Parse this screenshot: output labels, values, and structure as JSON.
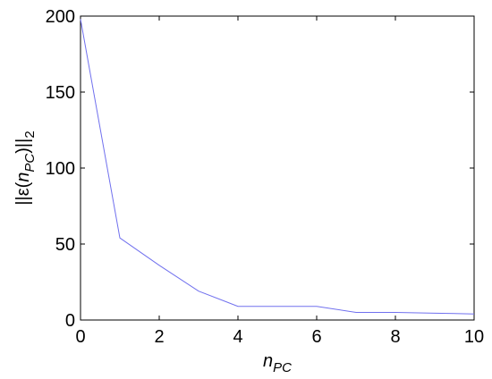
{
  "chart_data": {
    "type": "line",
    "xlabel": [
      "n",
      "PC"
    ],
    "ylabel": [
      "||ε(",
      "n",
      "PC",
      ")||",
      "2"
    ],
    "x": [
      0,
      1,
      2,
      3,
      4,
      5,
      6,
      7,
      8,
      9,
      10
    ],
    "series": [
      {
        "color": "#7070ee",
        "values": [
          198,
          54,
          36,
          19,
          9,
          9,
          9,
          5,
          5,
          4.5,
          4
        ]
      }
    ],
    "xlim": [
      0,
      10
    ],
    "xticks": [
      0,
      2,
      4,
      6,
      8,
      10
    ],
    "ylim": [
      0,
      200
    ],
    "yticks": [
      0,
      50,
      100,
      150,
      200
    ],
    "grid": false
  }
}
